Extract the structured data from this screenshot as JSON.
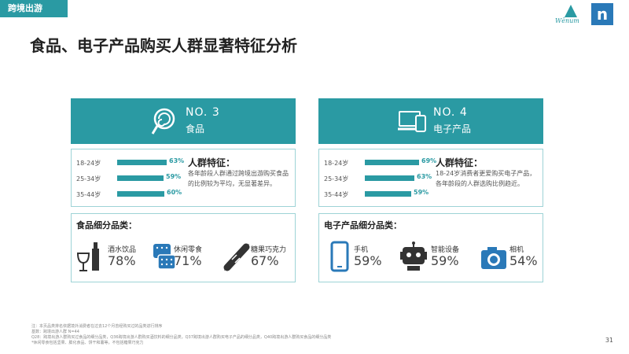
{
  "tag": "跨境出游",
  "logo_w_text": "Wēnum",
  "logo_n": "n",
  "title": "食品、电子产品购买人群显著特征分析",
  "panels": [
    {
      "rank": "NO. 3",
      "name": "食品",
      "icon": "lollipop-icon",
      "ages": [
        {
          "label": "18-24岁",
          "pct": "63%",
          "value": 63
        },
        {
          "label": "25-34岁",
          "pct": "59%",
          "value": 59
        },
        {
          "label": "35-44岁",
          "pct": "60%",
          "value": 60
        }
      ],
      "trait_title": "人群特征：",
      "trait_text": "各年龄段人群通过跨境出游购买食品的比例较为平均，无显著差异。",
      "cat_title": "食品细分品类：",
      "cats": [
        {
          "icon": "wine-icon",
          "label": "酒水饮品",
          "value": "78%"
        },
        {
          "icon": "cookie-icon",
          "label": "休闲零食",
          "value": "71%"
        },
        {
          "icon": "candy-icon",
          "label": "糖果巧克力",
          "value": "67%"
        }
      ]
    },
    {
      "rank": "NO. 4",
      "name": "电子产品",
      "icon": "devices-icon",
      "ages": [
        {
          "label": "18-24岁",
          "pct": "69%",
          "value": 69
        },
        {
          "label": "25-34岁",
          "pct": "63%",
          "value": 63
        },
        {
          "label": "35-44岁",
          "pct": "59%",
          "value": 59
        }
      ],
      "trait_title": "人群特征：",
      "trait_text": "18-24岁消费者更爱购买电子产品，各年龄段的人群选购比例趋近。",
      "cat_title": "电子产品细分品类：",
      "cats": [
        {
          "icon": "phone-icon",
          "label": "手机",
          "value": "59%"
        },
        {
          "icon": "robot-icon",
          "label": "智能设备",
          "value": "59%"
        },
        {
          "icon": "camera-icon",
          "label": "相机",
          "value": "54%"
        }
      ]
    }
  ],
  "footnotes": [
    "注：本页品类排名依据境外消费者在过去12个月曾经购买过的品类进行排序",
    "基数：跨境出游人群 N=44",
    "Q28：跨境出游人群购买过食品的细分品类，Q36跨境出游人群购买酒饮料的细分品类，Q37跨境出游人群购买电子产品的细分品类，Q40跨境出游人群购买食品的细分品类",
    "*休闲零食包括坚果、膨化食品、饼干和薯等，不包括糖果巧克力"
  ],
  "page_number": "31",
  "colors": {
    "accent": "#2a9aa3",
    "brand_n": "#2a79b8"
  }
}
